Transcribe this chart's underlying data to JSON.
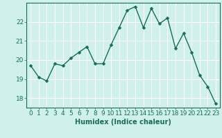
{
  "x": [
    0,
    1,
    2,
    3,
    4,
    5,
    6,
    7,
    8,
    9,
    10,
    11,
    12,
    13,
    14,
    15,
    16,
    17,
    18,
    19,
    20,
    21,
    22,
    23
  ],
  "y": [
    19.7,
    19.1,
    18.9,
    19.8,
    19.7,
    20.1,
    20.4,
    20.7,
    19.8,
    19.8,
    20.8,
    21.7,
    22.6,
    22.8,
    21.7,
    22.7,
    21.9,
    22.2,
    20.6,
    21.4,
    20.4,
    19.2,
    18.6,
    17.7
  ],
  "line_color": "#1a6b5a",
  "marker": "D",
  "marker_size": 2.5,
  "bg_color": "#cff0eb",
  "grid_color": "#ffffff",
  "tick_color": "#1a6b5a",
  "xlabel": "Humidex (Indice chaleur)",
  "xlabel_fontsize": 7,
  "xlabel_color": "#1a6b5a",
  "ylim": [
    17.5,
    23.0
  ],
  "xlim": [
    -0.5,
    23.5
  ],
  "yticks": [
    18,
    19,
    20,
    21,
    22
  ],
  "xticks": [
    0,
    1,
    2,
    3,
    4,
    5,
    6,
    7,
    8,
    9,
    10,
    11,
    12,
    13,
    14,
    15,
    16,
    17,
    18,
    19,
    20,
    21,
    22,
    23
  ],
  "tick_fontsize": 6.5,
  "line_width": 1.0
}
